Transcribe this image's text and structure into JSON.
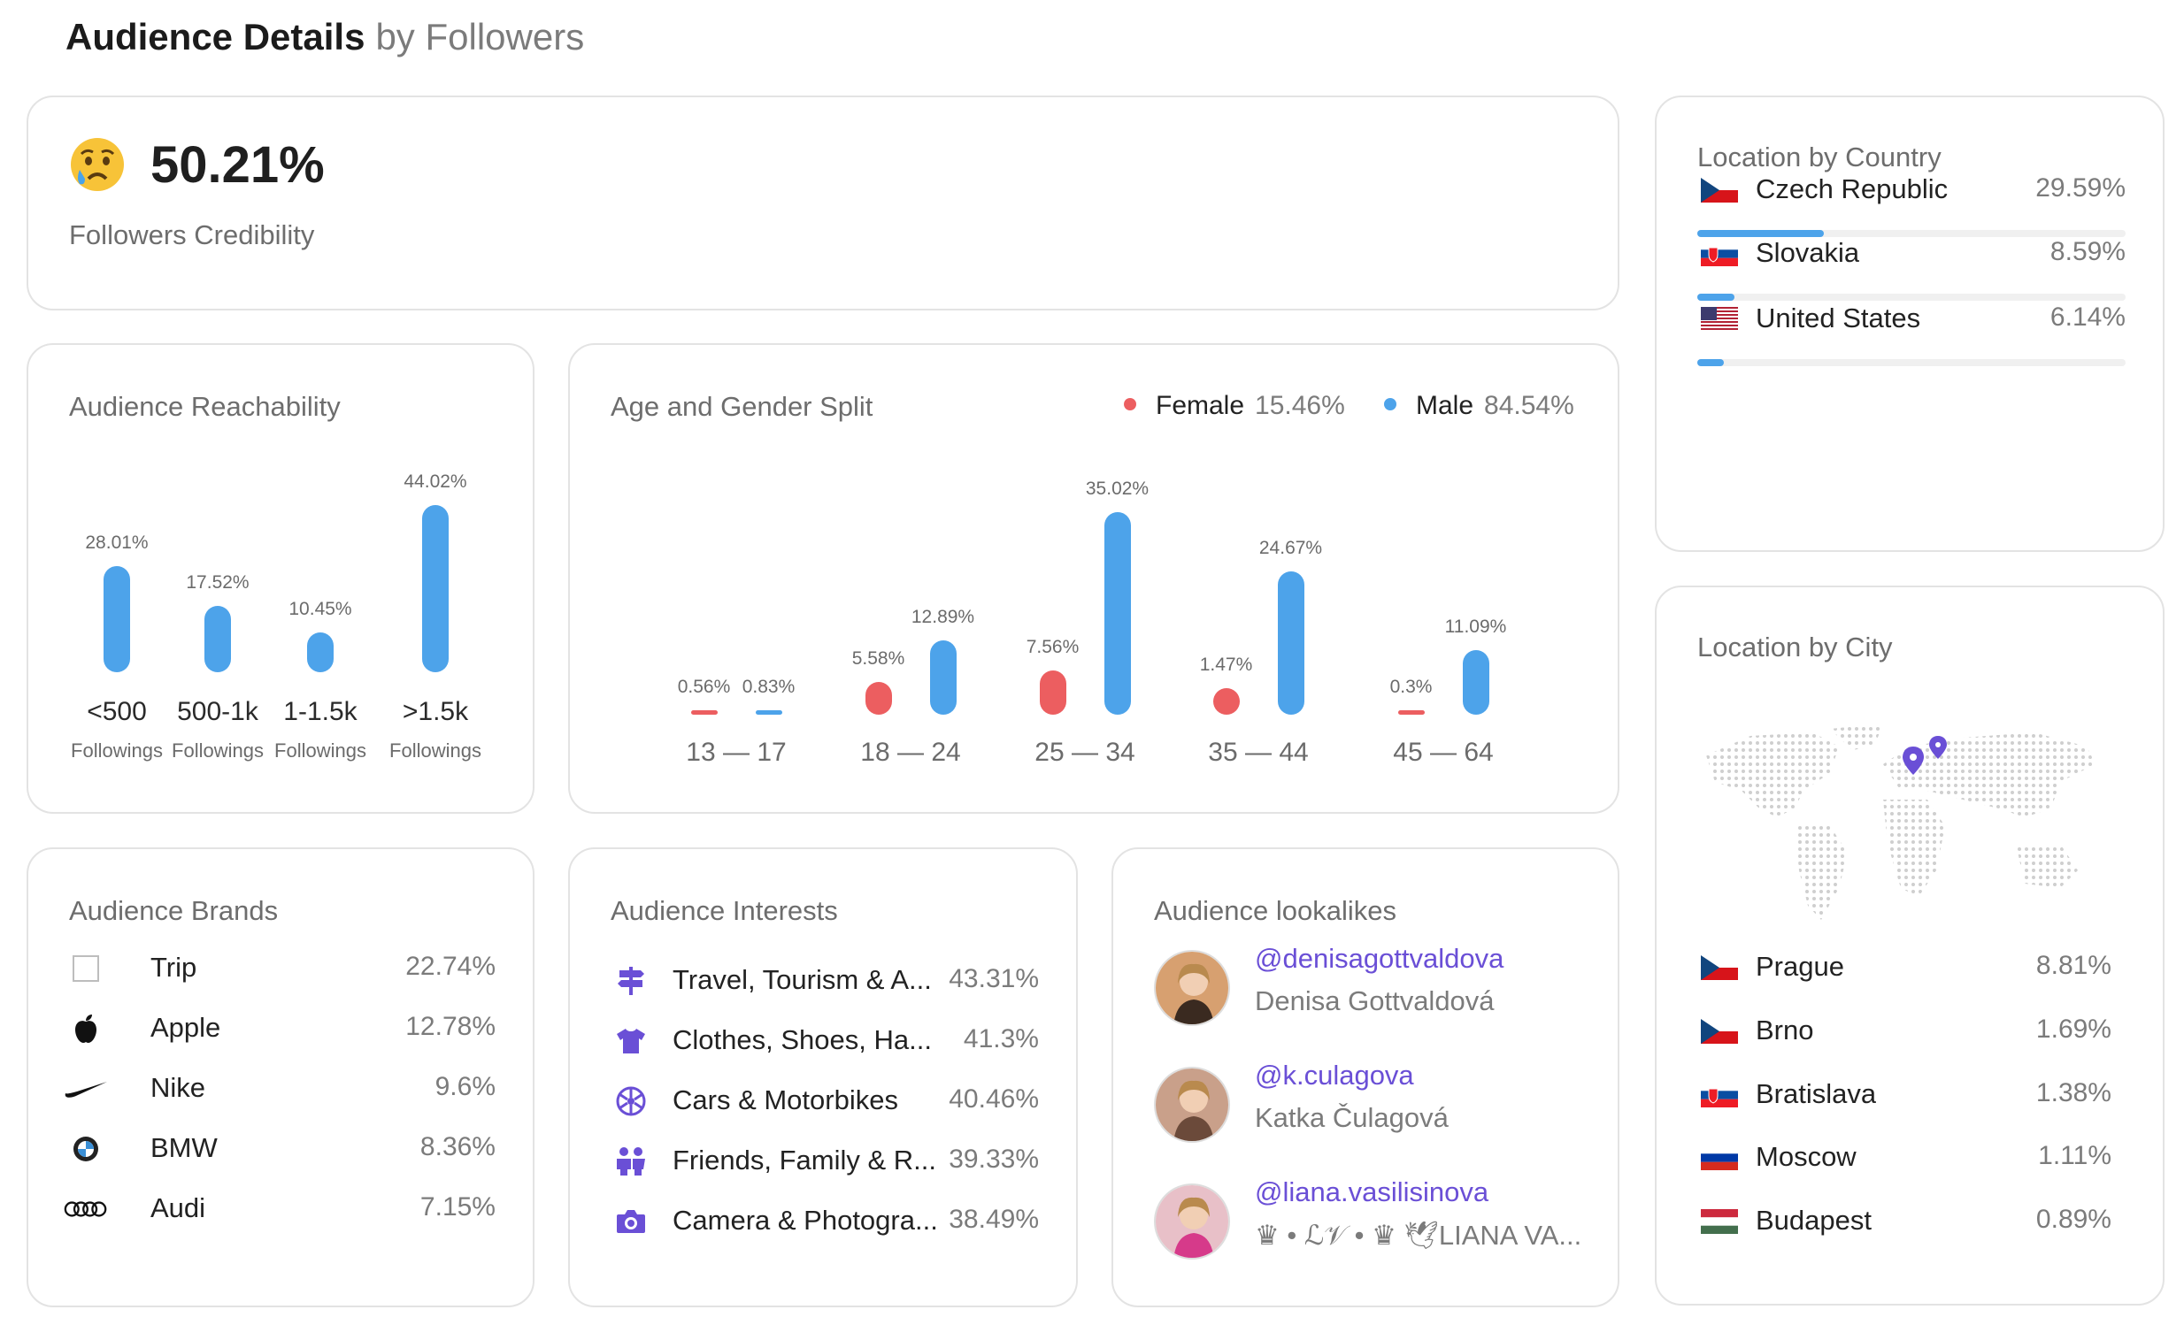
{
  "header": {
    "title": "Audience Details",
    "subtitle": "by Followers"
  },
  "credibility": {
    "value": "50.21%",
    "label": "Followers Credibility",
    "icon": "sad-face-icon"
  },
  "reachability": {
    "title": "Audience Reachability",
    "chart_data": {
      "type": "bar",
      "categories": [
        "<500",
        "500-1k",
        "1-1.5k",
        ">1.5k"
      ],
      "category_sub": [
        "Followings",
        "Followings",
        "Followings",
        "Followings"
      ],
      "values": [
        28.01,
        17.52,
        10.45,
        44.02
      ],
      "labels": [
        "28.01%",
        "17.52%",
        "10.45%",
        "44.02%"
      ],
      "color": "#4da3ea"
    }
  },
  "age_gender": {
    "title": "Age and Gender Split",
    "legend": [
      {
        "name": "Female",
        "pct": "15.46%",
        "color": "#ec5e60"
      },
      {
        "name": "Male",
        "pct": "84.54%",
        "color": "#4da3ea"
      }
    ],
    "chart_data": {
      "type": "bar",
      "categories": [
        "13 — 17",
        "18 — 24",
        "25 — 34",
        "35 — 44",
        "45 — 64"
      ],
      "series": [
        {
          "name": "Female",
          "values": [
            0.56,
            5.58,
            7.56,
            1.47,
            0.3
          ],
          "labels": [
            "0.56%",
            "5.58%",
            "7.56%",
            "1.47%",
            "0.3%"
          ],
          "color": "#ec5e60"
        },
        {
          "name": "Male",
          "values": [
            0.83,
            12.89,
            35.02,
            24.67,
            11.09
          ],
          "labels": [
            "0.83%",
            "12.89%",
            "35.02%",
            "24.67%",
            "11.09%"
          ],
          "color": "#4da3ea"
        }
      ]
    }
  },
  "country": {
    "title": "Location by Country",
    "items": [
      {
        "name": "Czech Republic",
        "pct": "29.59%",
        "value": 29.59,
        "flag": "cz"
      },
      {
        "name": "Slovakia",
        "pct": "8.59%",
        "value": 8.59,
        "flag": "sk"
      },
      {
        "name": "United States",
        "pct": "6.14%",
        "value": 6.14,
        "flag": "us"
      }
    ]
  },
  "city": {
    "title": "Location by City",
    "map_icon": "world-map-icon",
    "items": [
      {
        "name": "Prague",
        "pct": "8.81%",
        "flag": "cz"
      },
      {
        "name": "Brno",
        "pct": "1.69%",
        "flag": "cz"
      },
      {
        "name": "Bratislava",
        "pct": "1.38%",
        "flag": "sk"
      },
      {
        "name": "Moscow",
        "pct": "1.11%",
        "flag": "ru"
      },
      {
        "name": "Budapest",
        "pct": "0.89%",
        "flag": "hu"
      }
    ]
  },
  "brands": {
    "title": "Audience Brands",
    "items": [
      {
        "name": "Trip",
        "pct": "22.74%",
        "icon": "trip-logo-icon"
      },
      {
        "name": "Apple",
        "pct": "12.78%",
        "icon": "apple-logo-icon"
      },
      {
        "name": "Nike",
        "pct": "9.6%",
        "icon": "nike-logo-icon"
      },
      {
        "name": "BMW",
        "pct": "8.36%",
        "icon": "bmw-logo-icon"
      },
      {
        "name": "Audi",
        "pct": "7.15%",
        "icon": "audi-logo-icon"
      }
    ]
  },
  "interests": {
    "title": "Audience Interests",
    "accent": "#6a4fd6",
    "items": [
      {
        "name": "Travel, Tourism & A...",
        "pct": "43.31%",
        "icon": "signpost-icon"
      },
      {
        "name": "Clothes, Shoes, Ha...",
        "pct": "41.3%",
        "icon": "tshirt-icon"
      },
      {
        "name": "Cars & Motorbikes",
        "pct": "40.46%",
        "icon": "steering-wheel-icon"
      },
      {
        "name": "Friends, Family & R...",
        "pct": "39.33%",
        "icon": "people-icon"
      },
      {
        "name": "Camera & Photogra...",
        "pct": "38.49%",
        "icon": "camera-icon"
      }
    ]
  },
  "lookalikes": {
    "title": "Audience lookalikes",
    "items": [
      {
        "handle": "@denisagottvaldova",
        "name": "Denisa Gottvaldová"
      },
      {
        "handle": "@k.culagova",
        "name": "Katka Čulagová"
      },
      {
        "handle": "@liana.vasilisinova",
        "name": "♛ • ℒ𝒱 • ♛ 🕊LIANA VA..."
      }
    ]
  }
}
